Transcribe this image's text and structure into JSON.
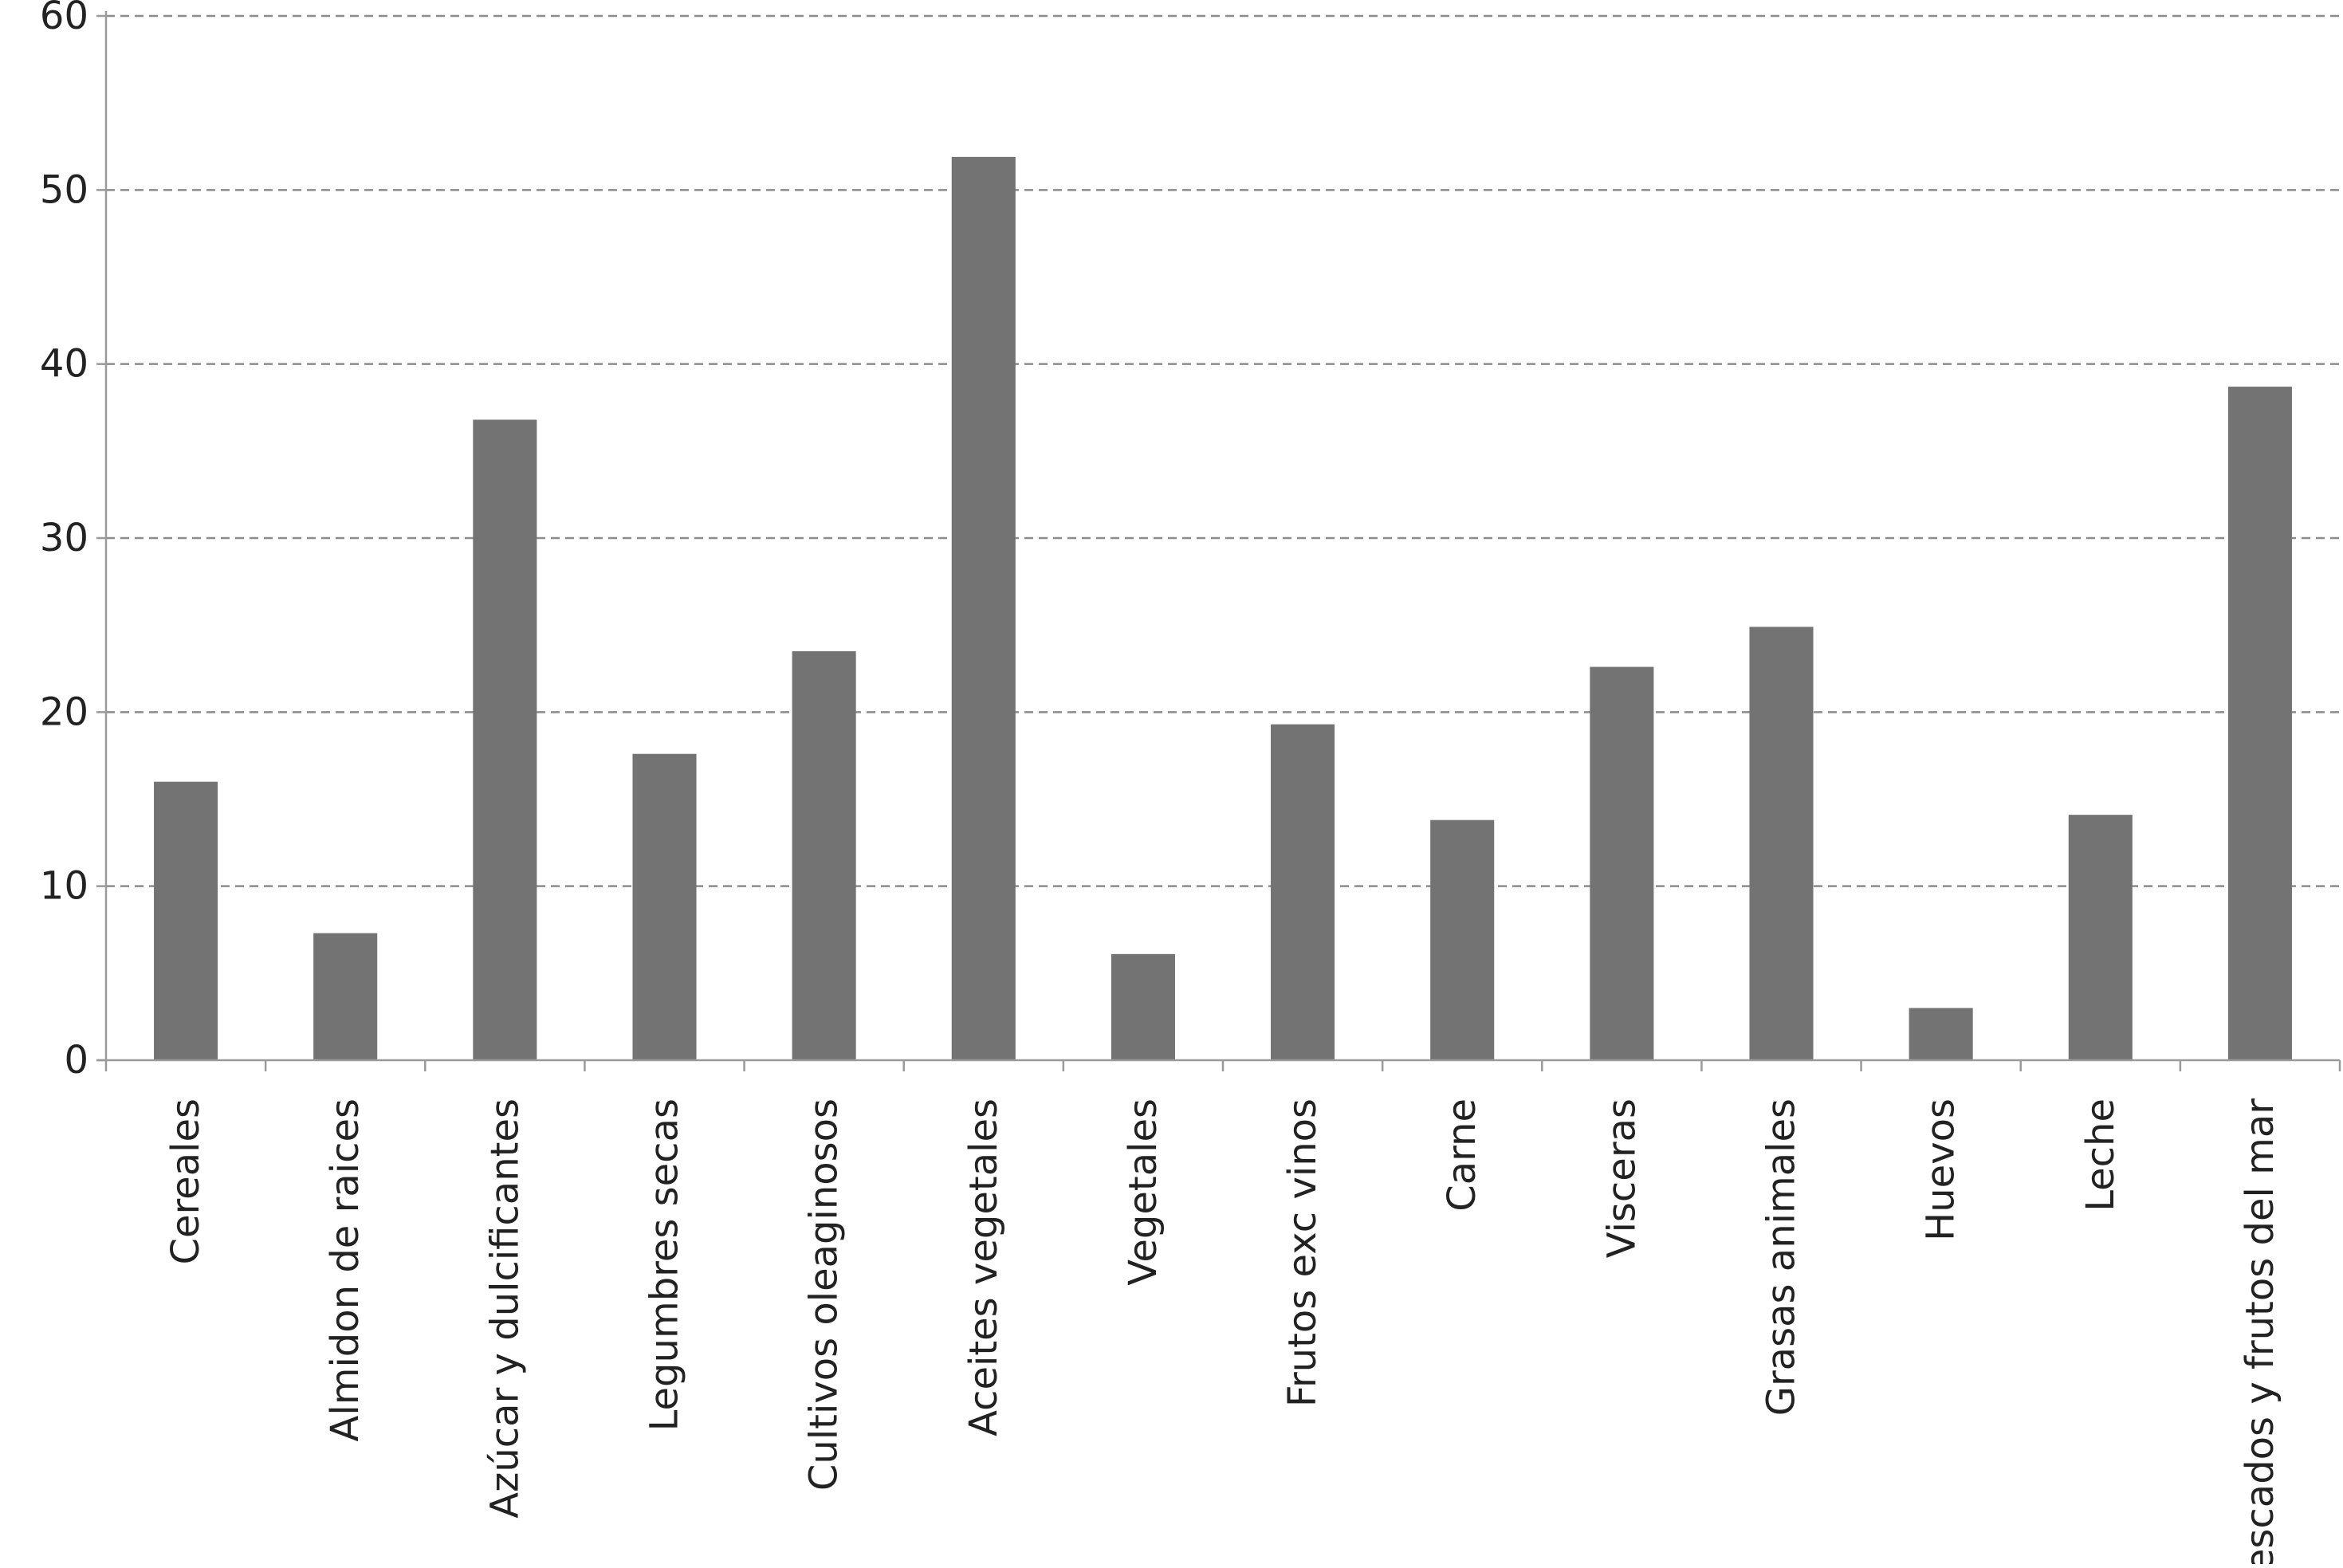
{
  "chart_data": {
    "type": "bar",
    "title": "",
    "xlabel": "",
    "ylabel": "",
    "ylim": [
      0,
      60
    ],
    "yticks": [
      0,
      10,
      20,
      30,
      40,
      50,
      60
    ],
    "grid": true,
    "legend": "none",
    "bar_color": "#737373",
    "categories": [
      "Cereales",
      "Almidon de raices",
      "Azúcar y dulcificantes",
      "Legumbres secas",
      "Cultivos oleaginosos",
      "Aceites vegetales",
      "Vegetales",
      "Frutos exc vinos",
      "Carne",
      "Visceras",
      "Grasas animales",
      "Huevos",
      "Leche",
      "Pescados y frutos del mar"
    ],
    "values": [
      16,
      7.3,
      36.8,
      17.6,
      23.5,
      51.9,
      6.1,
      19.3,
      13.8,
      22.6,
      24.9,
      3.0,
      14.1,
      38.7
    ]
  }
}
